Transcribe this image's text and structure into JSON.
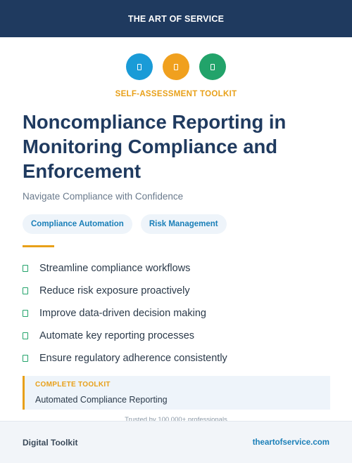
{
  "header": {
    "brand": "THE ART OF SERVICE",
    "color": "#1f3a5f"
  },
  "icons": [
    {
      "name": "document-icon",
      "color": "#1a9bd7"
    },
    {
      "name": "document-icon",
      "color": "#f0a01e"
    },
    {
      "name": "document-icon",
      "color": "#22a36a"
    }
  ],
  "eyebrow": "SELF-ASSESSMENT TOOLKIT",
  "title": "Noncompliance Reporting in Monitoring Compliance and Enforcement",
  "subtitle": "Navigate Compliance with Confidence",
  "tags": [
    "Compliance Automation",
    "Risk Management"
  ],
  "benefits": [
    "Streamline compliance workflows",
    "Reduce risk exposure proactively",
    "Improve data-driven decision making",
    "Automate key reporting processes",
    "Ensure regulatory adherence consistently"
  ],
  "callout": {
    "label": "COMPLETE TOOLKIT",
    "value": "Automated Compliance Reporting"
  },
  "trusted": "Trusted by 100,000+ professionals",
  "footer": {
    "left": "Digital Toolkit",
    "right": "theartofservice.com"
  },
  "colors": {
    "accent": "#e8a019",
    "link": "#1a7fb8",
    "check": "#22a36a"
  }
}
